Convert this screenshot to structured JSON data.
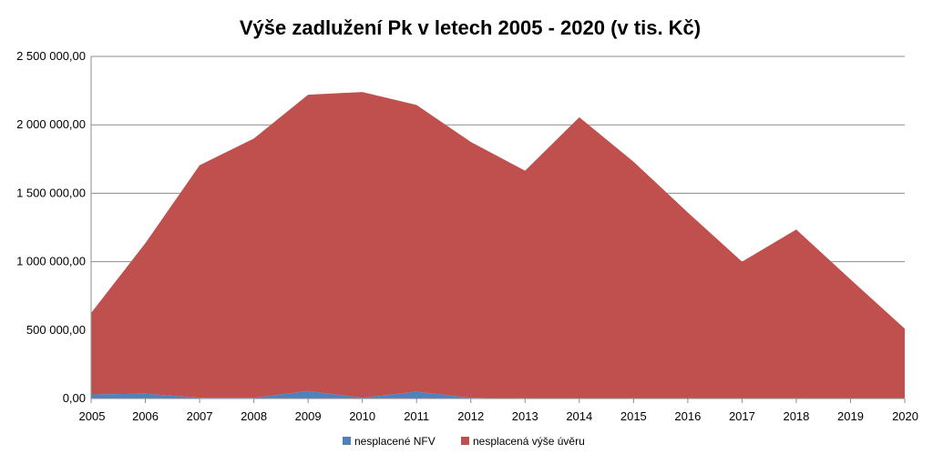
{
  "chart_data": {
    "type": "area",
    "stacked": true,
    "title": "Výše zadlužení Pk v letech 2005 - 2020 (v tis. Kč)",
    "xlabel": "",
    "ylabel": "",
    "x": [
      "2005",
      "2006",
      "2007",
      "2008",
      "2009",
      "2010",
      "2011",
      "2012",
      "2013",
      "2014",
      "2015",
      "2016",
      "2017",
      "2018",
      "2019",
      "2020"
    ],
    "ylim": [
      0,
      2500000
    ],
    "yticks": [
      0,
      500000,
      1000000,
      1500000,
      2000000,
      2500000
    ],
    "ytick_labels": [
      "0,00",
      "500 000,00",
      "1 000 000,00",
      "1 500 000,00",
      "2 000 000,00",
      "2 500 000,00"
    ],
    "grid": true,
    "legend_position": "bottom",
    "series": [
      {
        "name": "nesplacené NFV",
        "color": "#4f81bd",
        "values": [
          30000,
          35000,
          5000,
          5000,
          55000,
          5000,
          50000,
          5000,
          0,
          0,
          0,
          0,
          0,
          0,
          0,
          0
        ]
      },
      {
        "name": "nesplacená výše úvěru",
        "color": "#c0504d",
        "values": [
          595000,
          1100000,
          1700000,
          1895000,
          2165000,
          2235000,
          2095000,
          1870000,
          1665000,
          2055000,
          1730000,
          1360000,
          1000000,
          1235000,
          870000,
          510000
        ]
      }
    ]
  }
}
